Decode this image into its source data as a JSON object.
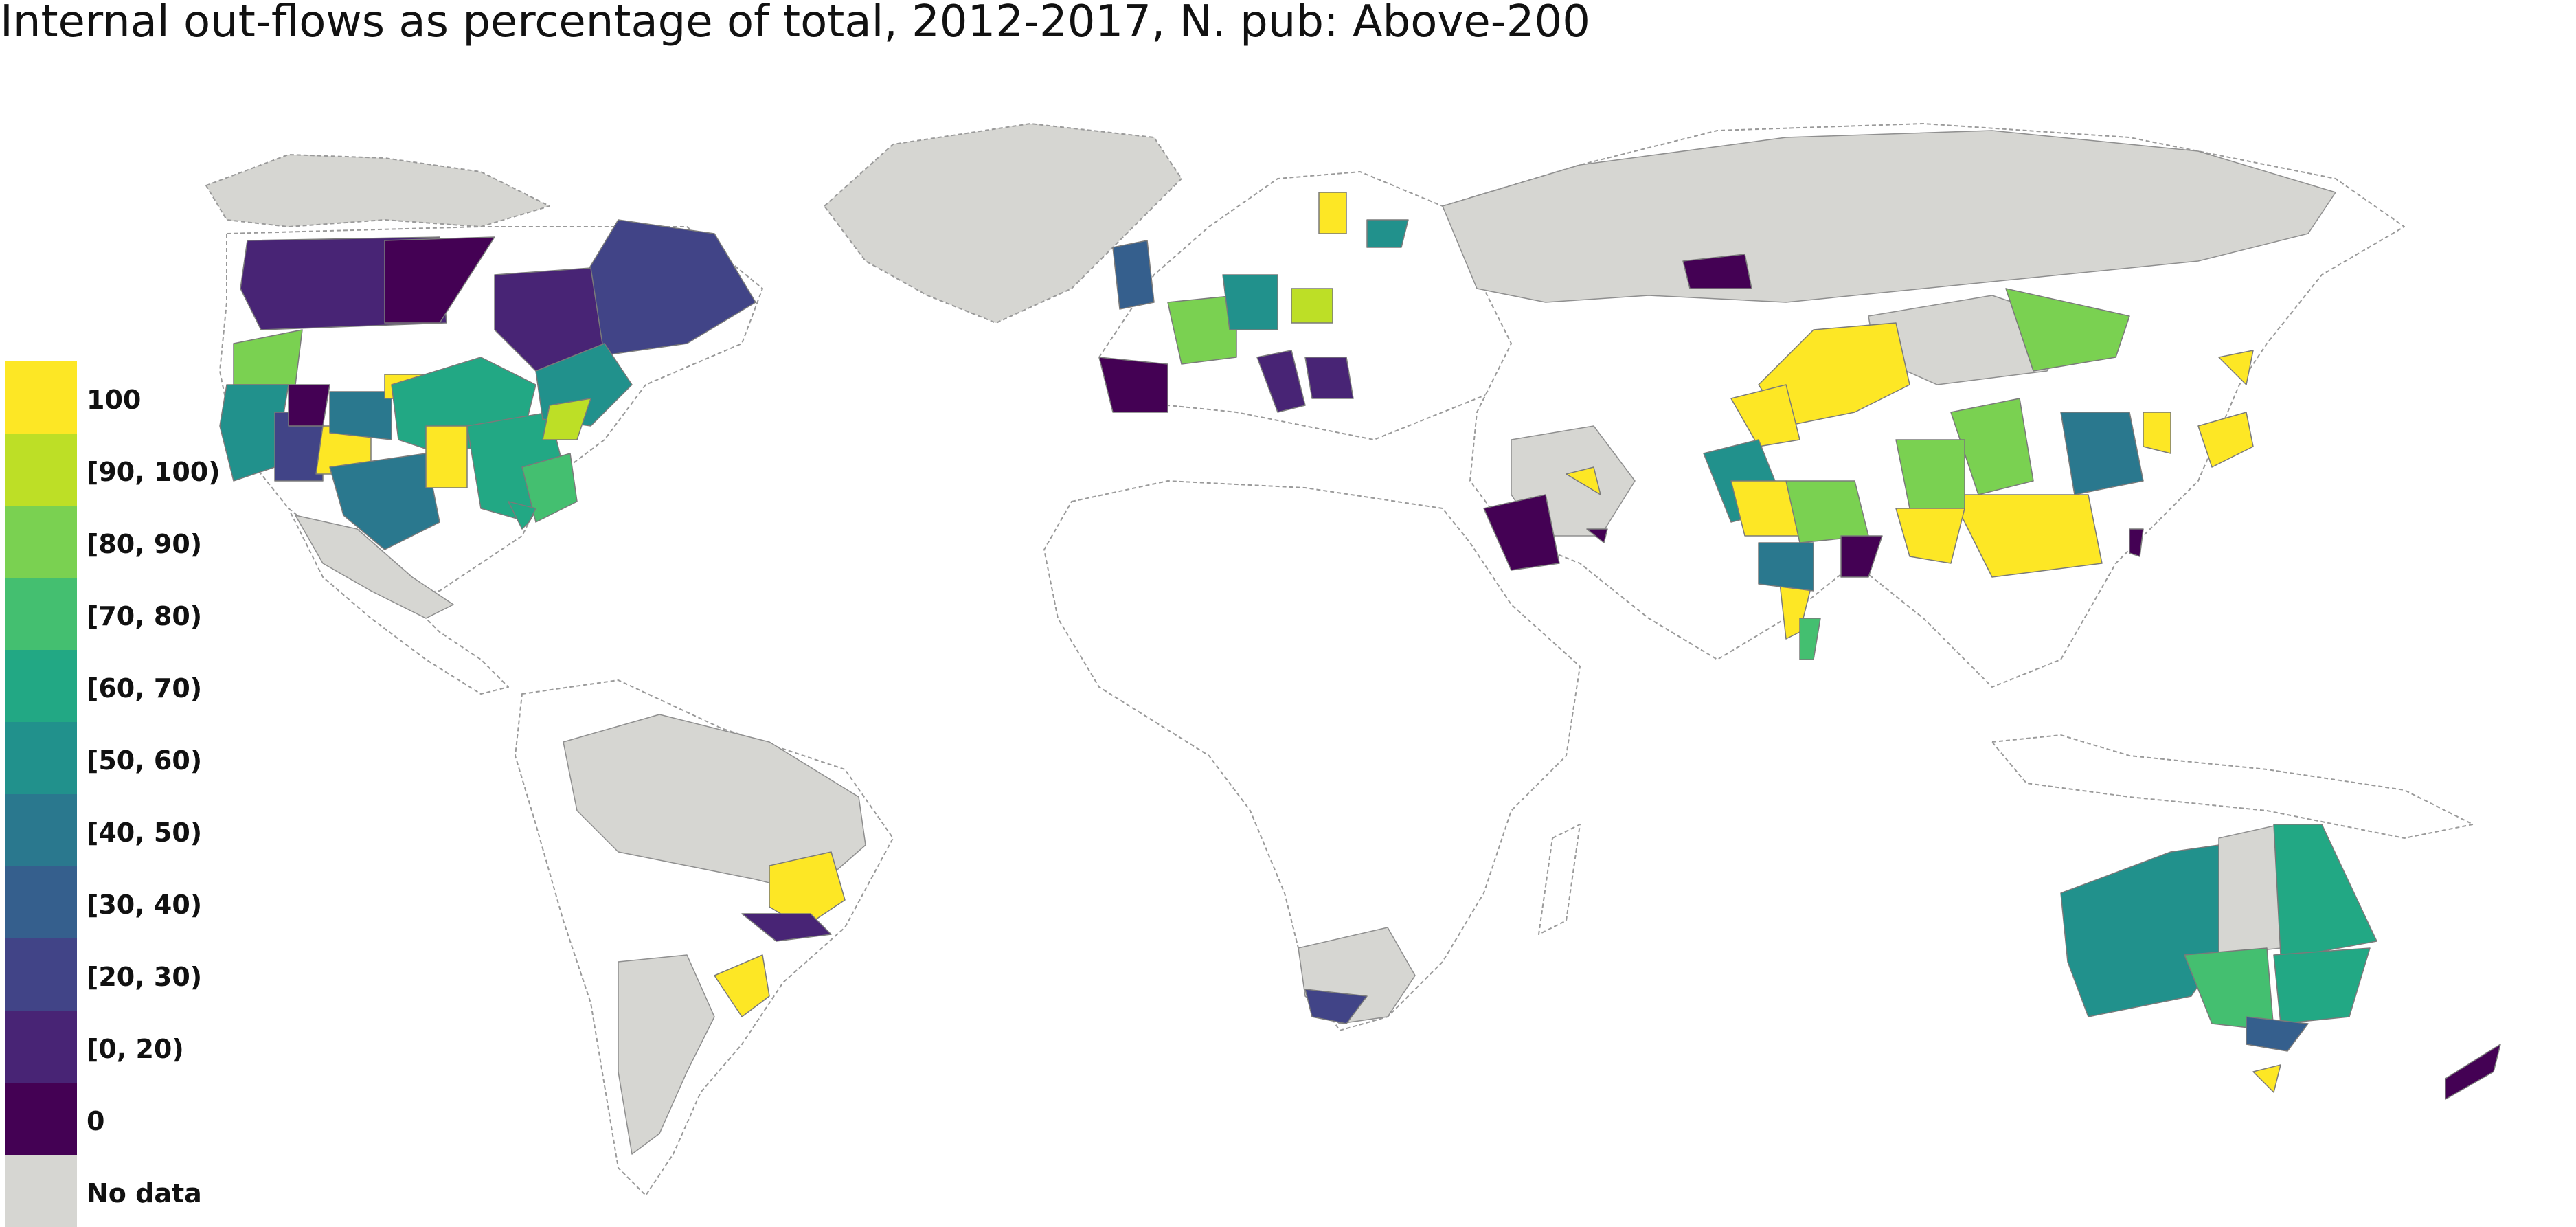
{
  "title": "Internal out-flows as percentage of total, 2012-2017, N. pub: Above-200",
  "legend": {
    "items": [
      {
        "label": "100",
        "color": "#fde725"
      },
      {
        "label": "[90, 100)",
        "color": "#bddf26"
      },
      {
        "label": "[80, 90)",
        "color": "#7ad151"
      },
      {
        "label": "[70, 80)",
        "color": "#44bf70"
      },
      {
        "label": "[60, 70)",
        "color": "#22a884"
      },
      {
        "label": "[50, 60)",
        "color": "#21918c"
      },
      {
        "label": "[40, 50)",
        "color": "#2a788e"
      },
      {
        "label": "[30, 40)",
        "color": "#355f8d"
      },
      {
        "label": "[20, 30)",
        "color": "#414487"
      },
      {
        "label": "[0, 20)",
        "color": "#482475"
      },
      {
        "label": "0",
        "color": "#440154"
      },
      {
        "label": "No data",
        "color": "#d6d6d2"
      }
    ]
  },
  "colors": {
    "no_data": "#d6d6d2",
    "land_border": "#9a9a9a",
    "background": "#ffffff"
  }
}
